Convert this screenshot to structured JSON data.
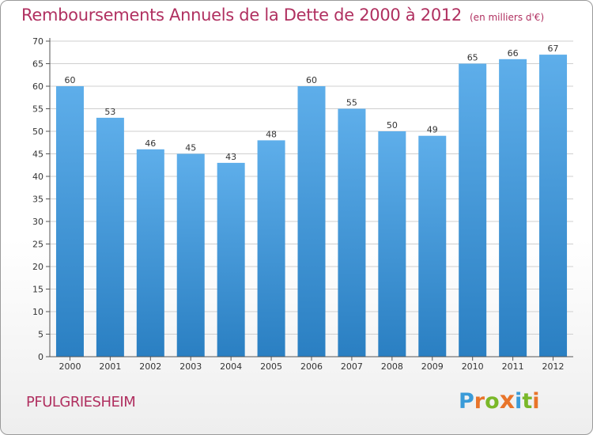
{
  "title": "Remboursements Annuels de la Dette de 2000 à 2012",
  "unit": "(en milliers d'€)",
  "commune": "PFULGRIESHEIM",
  "logo": {
    "letters": [
      "P",
      "r",
      "o",
      "x",
      "i",
      "t",
      "i"
    ],
    "colors": [
      "#3a9bd8",
      "#e8742a",
      "#7ab829",
      "#e8742a",
      "#3a9bd8",
      "#7ab829",
      "#e8742a"
    ]
  },
  "colors": {
    "bar_light": "#5eaeea",
    "bar_dark": "#2a7fc2",
    "title": "#b03060",
    "grid": "#cfcfcf"
  },
  "chart_data": {
    "type": "bar",
    "categories": [
      "2000",
      "2001",
      "2002",
      "2003",
      "2004",
      "2005",
      "2006",
      "2007",
      "2008",
      "2009",
      "2010",
      "2011",
      "2012"
    ],
    "values": [
      60,
      53,
      46,
      45,
      43,
      48,
      60,
      55,
      50,
      49,
      65,
      66,
      67
    ],
    "yticks": [
      0,
      5,
      10,
      15,
      20,
      25,
      30,
      35,
      40,
      45,
      50,
      55,
      60,
      65,
      70
    ],
    "ylim": [
      0,
      70
    ],
    "grid": true,
    "xlabel": "",
    "ylabel": ""
  }
}
